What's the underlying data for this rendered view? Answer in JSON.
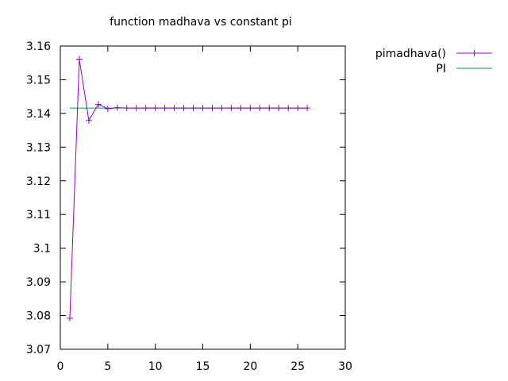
{
  "chart_data": {
    "type": "line",
    "title": "function madhava vs constant pi",
    "xlabel": "",
    "ylabel": "",
    "xlim": [
      0,
      30
    ],
    "ylim": [
      3.07,
      3.16
    ],
    "xticks": [
      0,
      5,
      10,
      15,
      20,
      25,
      30
    ],
    "yticks": [
      3.07,
      3.08,
      3.09,
      3.1,
      3.11,
      3.12,
      3.13,
      3.14,
      3.15,
      3.16
    ],
    "xtick_labels": [
      "0",
      "5",
      "10",
      "15",
      "20",
      "25",
      "30"
    ],
    "ytick_labels": [
      "3.07",
      "3.08",
      "3.09",
      "3.1",
      "3.11",
      "3.12",
      "3.13",
      "3.14",
      "3.15",
      "3.16"
    ],
    "grid": false,
    "legend": "outside-top-right",
    "series": [
      {
        "name": "pimadhava()",
        "color": "#9400d3",
        "marker": "plus",
        "x": [
          1,
          2,
          3,
          4,
          5,
          6,
          7,
          8,
          9,
          10,
          11,
          12,
          13,
          14,
          15,
          16,
          17,
          18,
          19,
          20,
          21,
          22,
          23,
          24,
          25,
          26
        ],
        "y": [
          3.0792,
          3.1561,
          3.1379,
          3.1427,
          3.1414,
          3.1417,
          3.1416,
          3.1416,
          3.1416,
          3.1416,
          3.1416,
          3.1416,
          3.1416,
          3.1416,
          3.1416,
          3.1416,
          3.1416,
          3.1416,
          3.1416,
          3.1416,
          3.1416,
          3.1416,
          3.1416,
          3.1416,
          3.1416,
          3.1416
        ]
      },
      {
        "name": "PI",
        "color": "#009e73",
        "marker": "none",
        "x": [
          1,
          26
        ],
        "y": [
          3.1416,
          3.1416
        ]
      }
    ]
  }
}
